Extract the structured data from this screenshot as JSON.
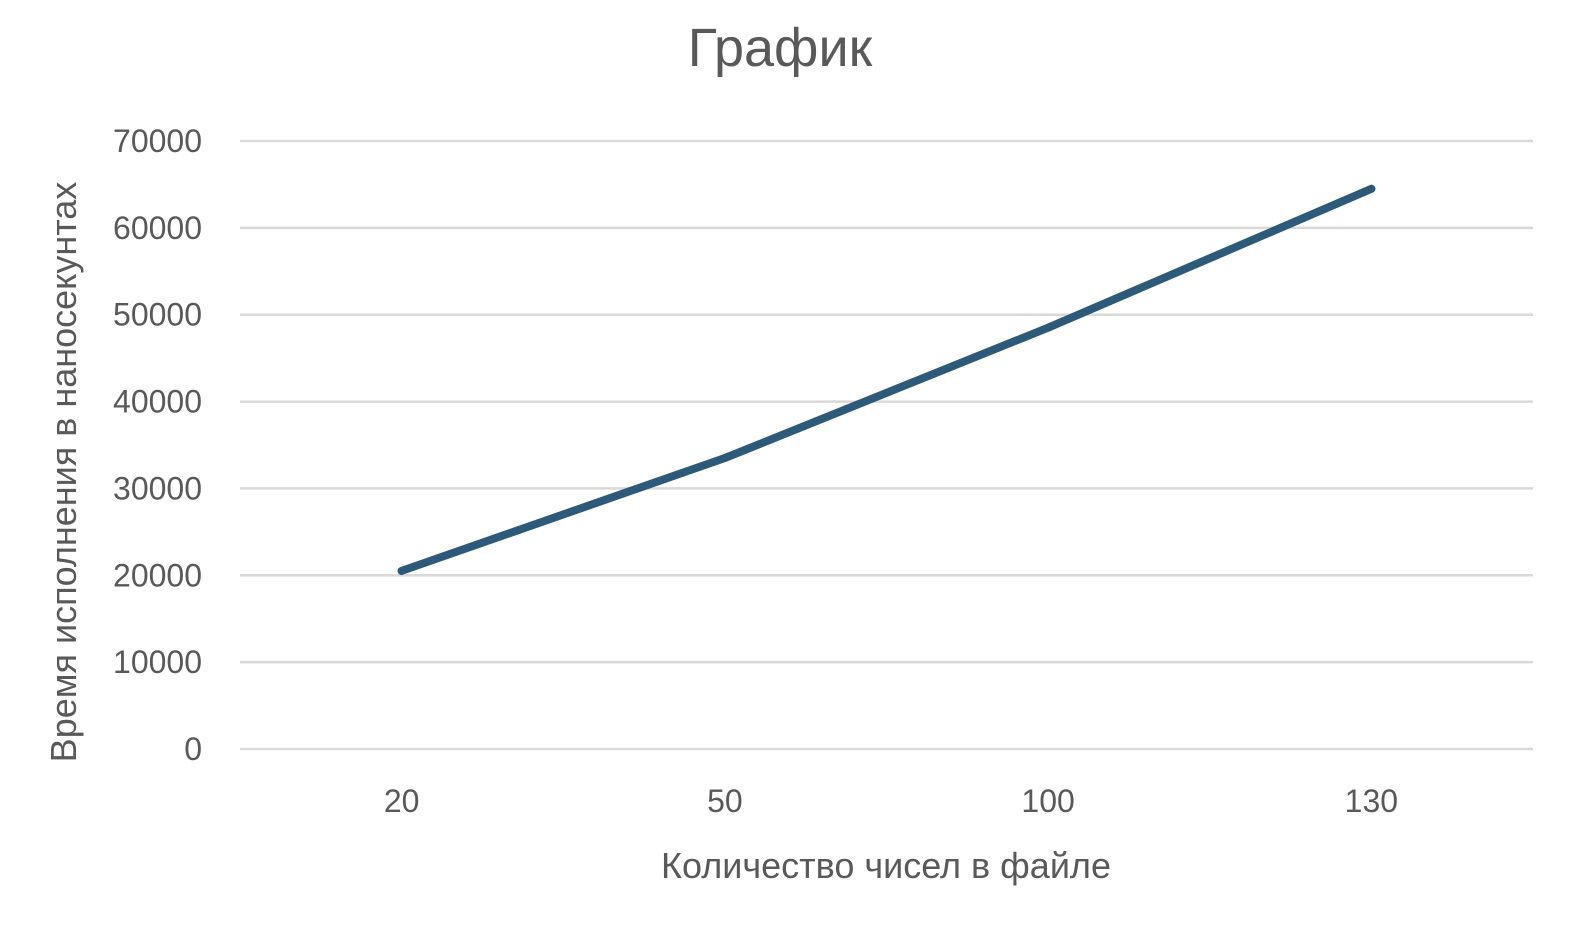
{
  "chart_data": {
    "type": "line",
    "title": "График",
    "xlabel": "Количество чисел в файле",
    "ylabel": "Время исполнения в наносекунтах",
    "categories": [
      "20",
      "50",
      "100",
      "130"
    ],
    "series": [
      {
        "values": [
          20500,
          33500,
          48500,
          64500
        ]
      }
    ],
    "y_ticks": [
      "0",
      "10000",
      "20000",
      "30000",
      "40000",
      "50000",
      "60000",
      "70000"
    ],
    "ylim": [
      0,
      70000
    ],
    "grid": true,
    "legend": "none",
    "colors": {
      "line": "#2e5a7a",
      "grid": "#d9d9d9",
      "text": "#595959"
    }
  }
}
